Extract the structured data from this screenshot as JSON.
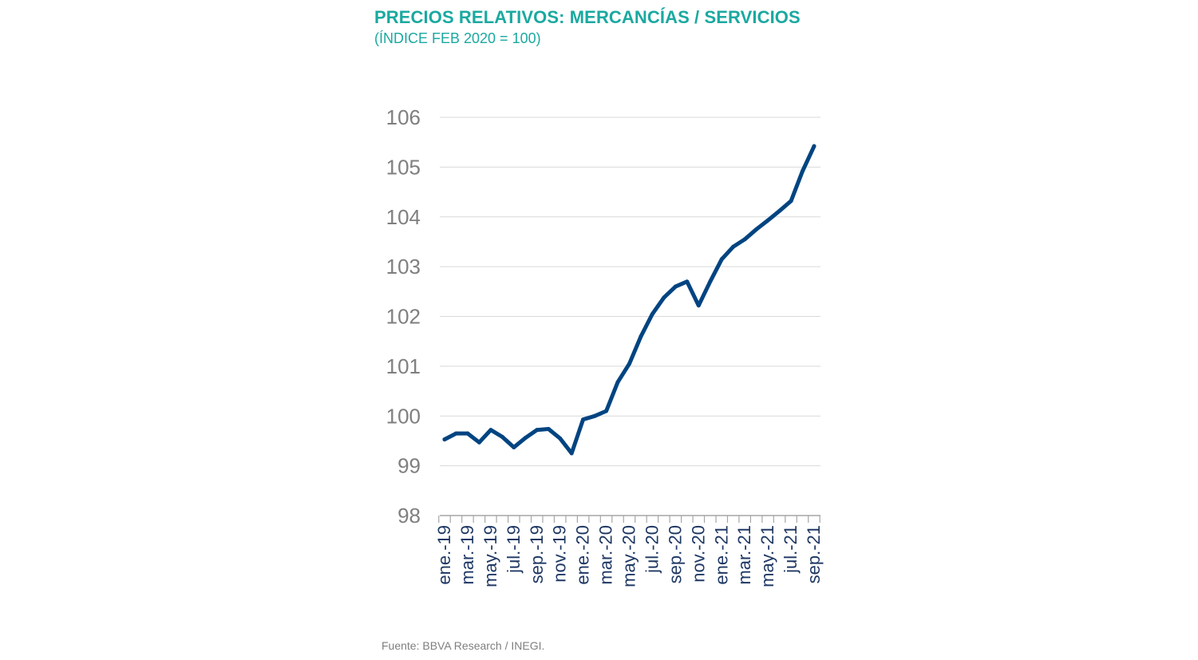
{
  "chart_data": {
    "type": "line",
    "title": "PRECIOS RELATIVOS: MERCANCÍAS / SERVICIOS",
    "subtitle": "(ÍNDICE FEB 2020 = 100)",
    "source": "Fuente: BBVA Research / INEGI.",
    "xlabel": "",
    "ylabel": "",
    "ylim": [
      98,
      106
    ],
    "yticks": [
      98,
      99,
      100,
      101,
      102,
      103,
      104,
      105,
      106
    ],
    "grid": true,
    "legend": "none",
    "line_color": "#004481",
    "x": [
      "ene.-19",
      "feb.-19",
      "mar.-19",
      "abr.-19",
      "may.-19",
      "jun.-19",
      "jul.-19",
      "ago.-19",
      "sep.-19",
      "oct.-19",
      "nov.-19",
      "dic.-19",
      "ene.-20",
      "feb.-20",
      "mar.-20",
      "abr.-20",
      "may.-20",
      "jun.-20",
      "jul.-20",
      "ago.-20",
      "sep.-20",
      "oct.-20",
      "nov.-20",
      "dic.-20",
      "ene.-21",
      "feb.-21",
      "mar.-21",
      "abr.-21",
      "may.-21",
      "jun.-21",
      "jul.-21",
      "ago.-21",
      "sep.-21"
    ],
    "xtick_labels": [
      "ene.-19",
      "",
      "mar.-19",
      "",
      "may.-19",
      "",
      "jul.-19",
      "",
      "sep.-19",
      "",
      "nov.-19",
      "",
      "ene.-20",
      "",
      "mar.-20",
      "",
      "may.-20",
      "",
      "jul.-20",
      "",
      "sep.-20",
      "",
      "nov.-20",
      "",
      "ene.-21",
      "",
      "mar.-21",
      "",
      "may.-21",
      "",
      "jul.-21",
      "",
      "sep.-21"
    ],
    "series": [
      {
        "values": [
          99.53,
          99.65,
          99.65,
          99.47,
          99.72,
          99.58,
          99.37,
          99.56,
          99.72,
          99.74,
          99.55,
          99.25,
          99.93,
          100.0,
          100.1,
          100.68,
          101.05,
          101.6,
          102.05,
          102.38,
          102.6,
          102.7,
          102.22,
          102.7,
          103.15,
          103.4,
          103.55,
          103.75,
          103.93,
          104.12,
          104.32,
          104.92,
          105.42
        ]
      }
    ]
  }
}
